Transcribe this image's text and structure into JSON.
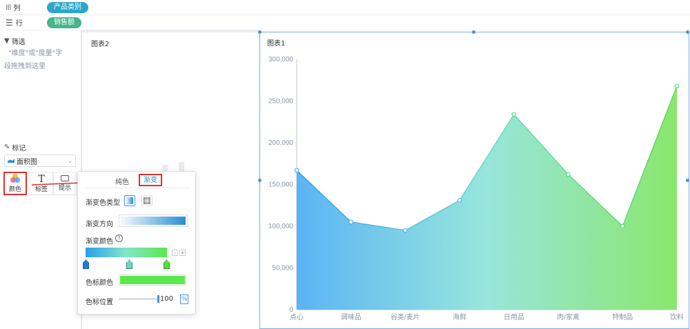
{
  "shelf": {
    "columns_label": "列",
    "columns_pill": "产品类别",
    "rows_label": "行",
    "rows_pill": "销售额"
  },
  "filter": {
    "title": "筛选",
    "hint_line1": "\"维度\"或\"度量\"字",
    "hint_line2": "段拖拽到这里"
  },
  "marks": {
    "title": "标记",
    "chart_type": "面积图",
    "buttons": [
      {
        "label": "颜色",
        "icon": "color-icon"
      },
      {
        "label": "标签",
        "icon": "text-icon"
      },
      {
        "label": "提示",
        "icon": "tooltip-icon"
      }
    ]
  },
  "chart2": {
    "title": "图表2"
  },
  "chart1": {
    "title": "图表1"
  },
  "popup": {
    "tab_solid": "纯色",
    "tab_gradient": "渐变",
    "gradient_type_label": "渐变色类型",
    "gradient_direction_label": "渐变方向",
    "gradient_color_label": "渐变颜色",
    "help_glyph": "?",
    "minus": "-",
    "plus": "+",
    "stop_color_label": "色标颜色",
    "stop_position_label": "色标位置",
    "stop_position_value": "100",
    "stop_position_unit": "%",
    "stop_color": "#5be84a"
  },
  "colors": {
    "columns_pill": "#2aa7c9",
    "rows_pill": "#49b58b",
    "gradient_start": "#5ab4f5",
    "gradient_mid": "#8fe6d6",
    "gradient_end": "#8ae76c",
    "highlight": "#e0302a"
  },
  "chart_data": {
    "type": "area",
    "title": "图表1",
    "categories": [
      "点心",
      "调味品",
      "谷类/麦片",
      "海鲜",
      "日用品",
      "肉/家禽",
      "特制品",
      "饮料"
    ],
    "values": [
      167000,
      105000,
      95000,
      131000,
      234000,
      162000,
      100000,
      268000
    ],
    "ylim": [
      0,
      300000
    ],
    "yticks": [
      "0",
      "50,000",
      "100,000",
      "150,000",
      "200,000",
      "250,000",
      "300,000"
    ],
    "grid": false
  }
}
